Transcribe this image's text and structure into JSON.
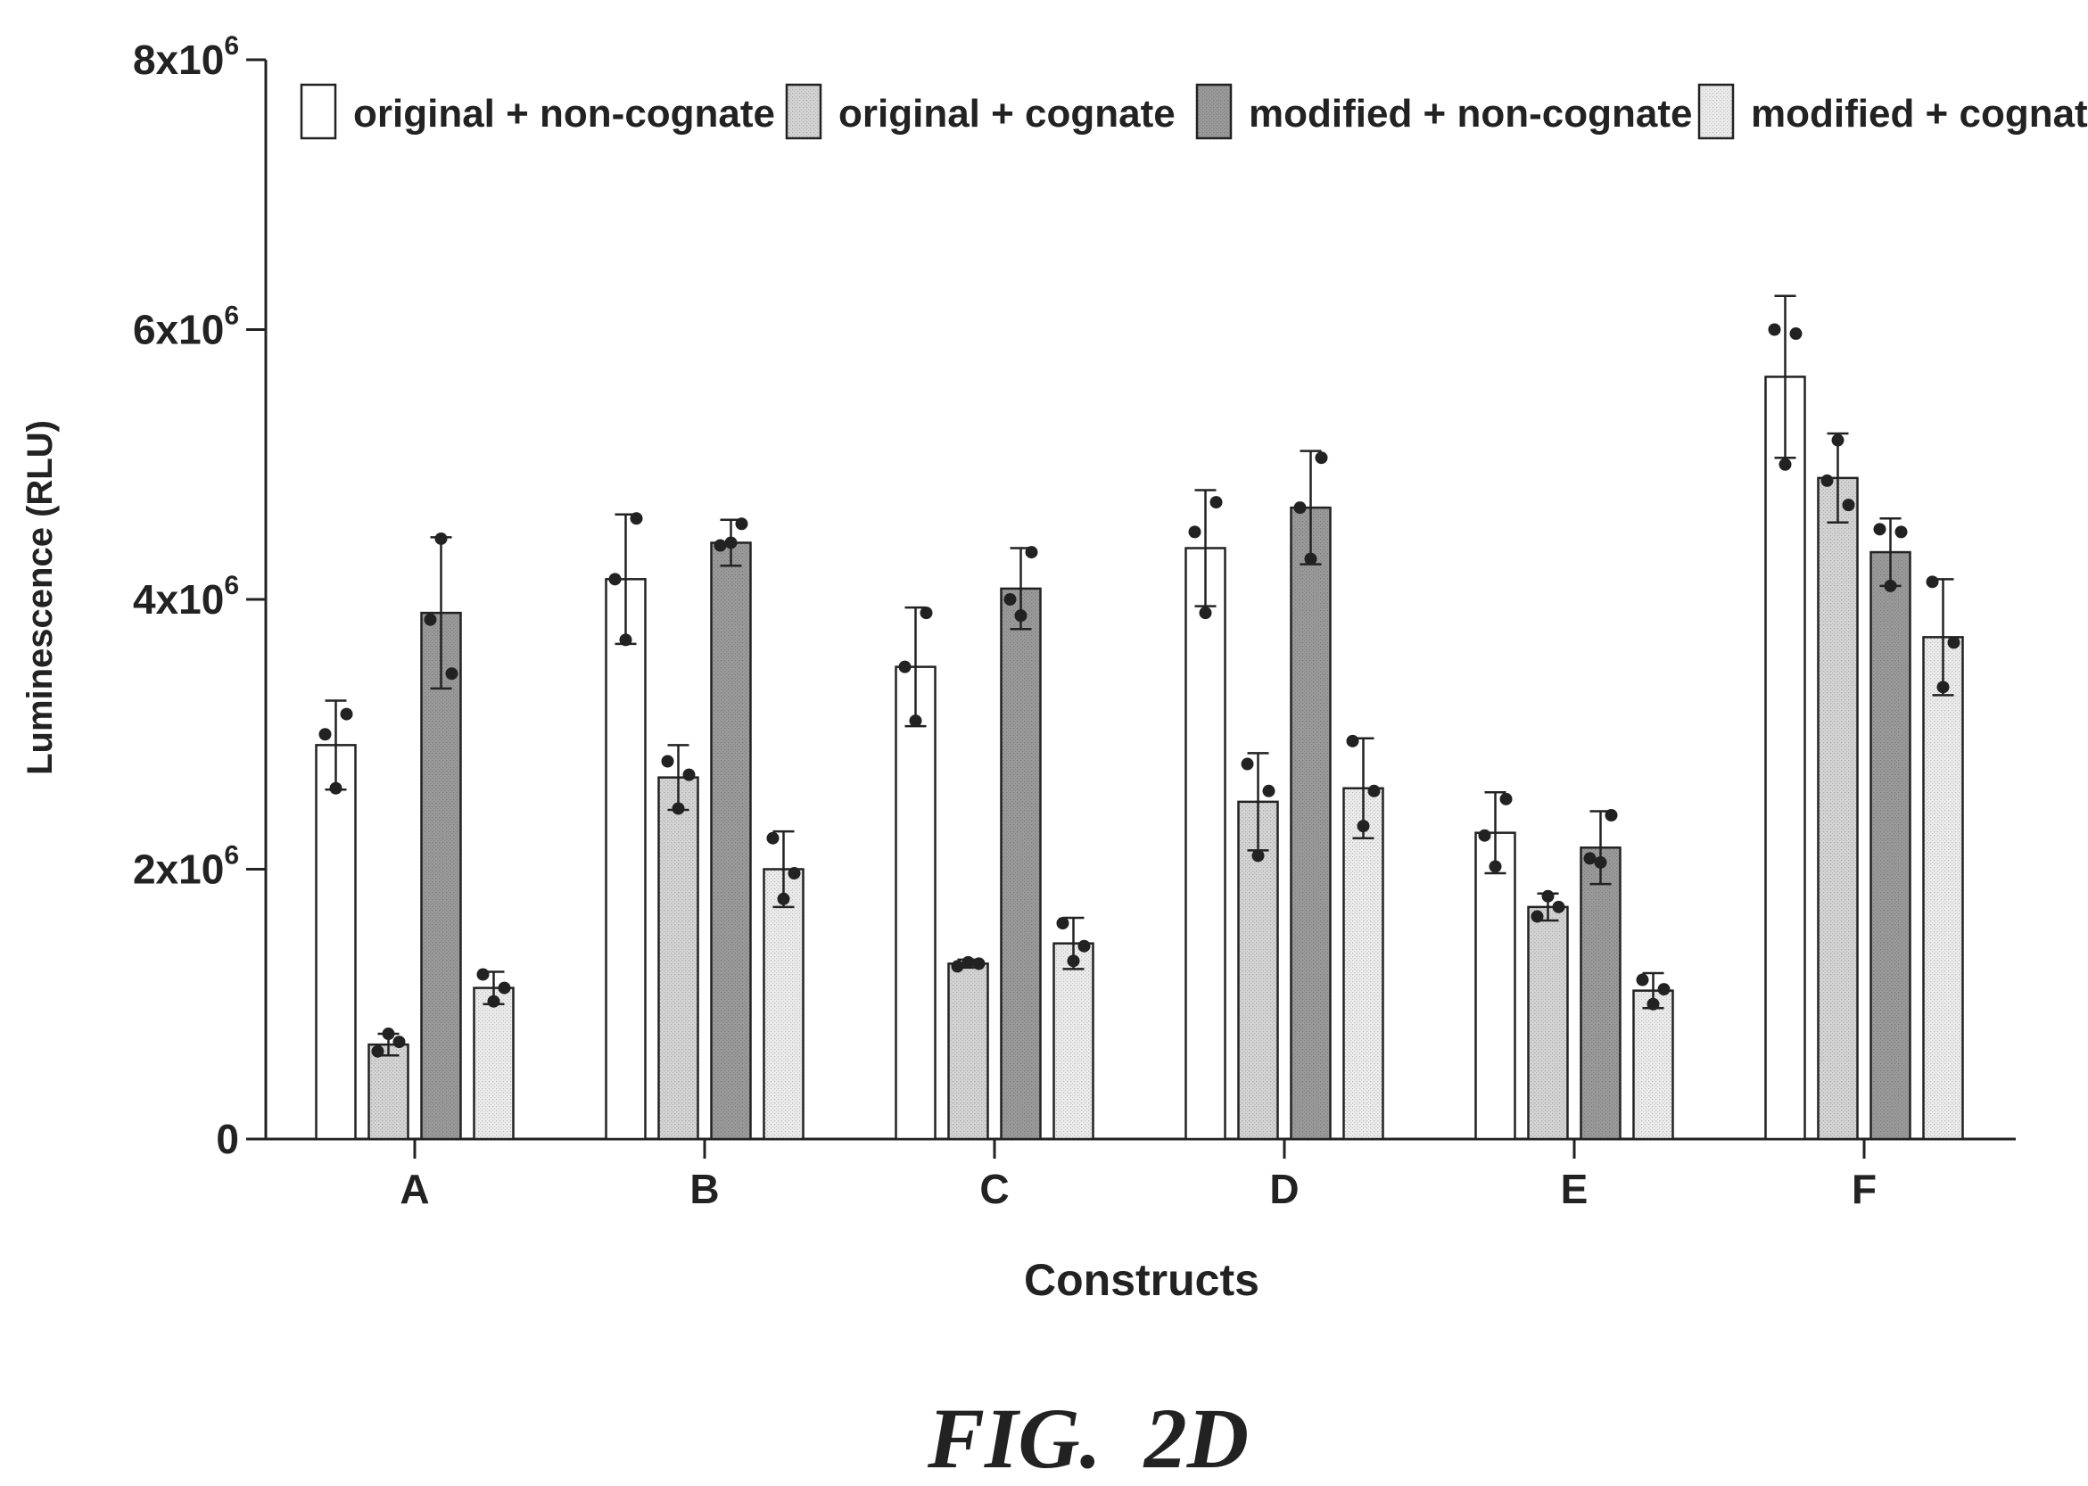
{
  "figure_caption": "FIG.  2D",
  "chart_data": {
    "type": "bar",
    "title": "",
    "xlabel": "Constructs",
    "ylabel": "Luminescence (RLU)",
    "categories": [
      "A",
      "B",
      "C",
      "D",
      "E",
      "F"
    ],
    "ylim": [
      0,
      8000000
    ],
    "yticks": [
      {
        "value": 0,
        "mantissa": "0",
        "exp": ""
      },
      {
        "value": 2000000,
        "mantissa": "2x10",
        "exp": "6"
      },
      {
        "value": 4000000,
        "mantissa": "4x10",
        "exp": "6"
      },
      {
        "value": 6000000,
        "mantissa": "6x10",
        "exp": "6"
      },
      {
        "value": 8000000,
        "mantissa": "8x10",
        "exp": "6"
      }
    ],
    "legend_position": "top",
    "grid": false,
    "series": [
      {
        "name": "original + non-cognate",
        "fill": "#ffffff",
        "values": [
          2920000,
          4150000,
          3500000,
          4380000,
          2270000,
          5650000
        ],
        "errors": [
          330000,
          480000,
          440000,
          430000,
          300000,
          600000
        ],
        "points": [
          [
            3000000,
            2600000,
            3150000
          ],
          [
            4150000,
            3700000,
            4600000
          ],
          [
            3500000,
            3100000,
            3900000
          ],
          [
            4500000,
            3900000,
            4720000
          ],
          [
            2250000,
            2020000,
            2520000
          ],
          [
            6000000,
            5000000,
            5970000
          ]
        ]
      },
      {
        "name": "original + cognate",
        "fill": "#d4d4d4",
        "values": [
          700000,
          2680000,
          1300000,
          2500000,
          1720000,
          4900000
        ],
        "errors": [
          80000,
          240000,
          30000,
          360000,
          100000,
          330000
        ],
        "points": [
          [
            650000,
            780000,
            720000
          ],
          [
            2800000,
            2450000,
            2700000
          ],
          [
            1280000,
            1310000,
            1300000
          ],
          [
            2780000,
            2100000,
            2580000
          ],
          [
            1650000,
            1800000,
            1720000
          ],
          [
            4880000,
            5180000,
            4700000
          ]
        ]
      },
      {
        "name": "modified + non-cognate",
        "fill": "#9a9a9a",
        "values": [
          3900000,
          4420000,
          4080000,
          4680000,
          2160000,
          4350000
        ],
        "errors": [
          560000,
          170000,
          300000,
          420000,
          270000,
          250000
        ],
        "points": [
          [
            3850000,
            4450000,
            3450000
          ],
          [
            4400000,
            4420000,
            4560000
          ],
          [
            4000000,
            3880000,
            4350000
          ],
          [
            4680000,
            4300000,
            5050000
          ],
          [
            2080000,
            2050000,
            2400000
          ],
          [
            4520000,
            4100000,
            4500000
          ]
        ]
      },
      {
        "name": "modified + cognate",
        "fill": "#ececec",
        "values": [
          1120000,
          2000000,
          1450000,
          2600000,
          1100000,
          3720000
        ],
        "errors": [
          120000,
          280000,
          190000,
          370000,
          130000,
          430000
        ],
        "points": [
          [
            1220000,
            1020000,
            1120000
          ],
          [
            2230000,
            1780000,
            1970000
          ],
          [
            1600000,
            1320000,
            1430000
          ],
          [
            2950000,
            2320000,
            2580000
          ],
          [
            1180000,
            1000000,
            1110000
          ],
          [
            4130000,
            3350000,
            3680000
          ]
        ]
      }
    ]
  }
}
